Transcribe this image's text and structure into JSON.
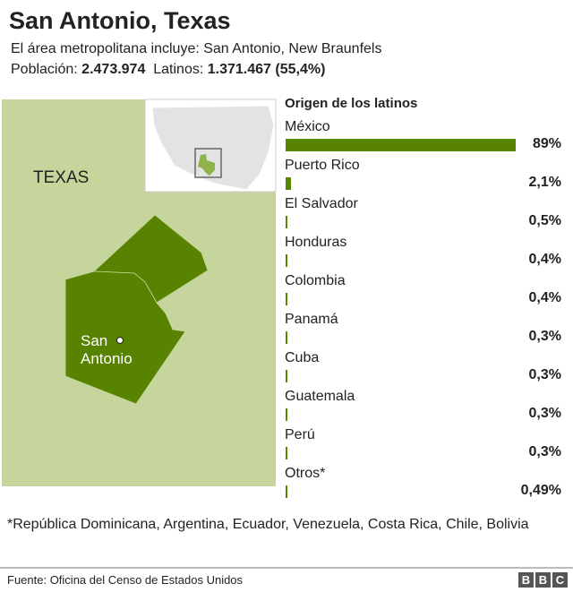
{
  "header": {
    "title": "San Antonio, Texas",
    "subtitle": "El área metropolitana incluye: San Antonio, New Braunfels",
    "pop_label": "Población:",
    "pop_value": "2.473.974",
    "lat_label": "Latinos:",
    "lat_value": "1.371.467 (55,4%)"
  },
  "map": {
    "state_label": "TEXAS",
    "city_label_1": "San",
    "city_label_2": "Antonio",
    "colors": {
      "land": "#c5d59b",
      "metro": "#588300"
    }
  },
  "chart_data": {
    "type": "bar",
    "title": "Origen de los latinos",
    "categories": [
      "México",
      "Puerto Rico",
      "El Salvador",
      "Honduras",
      "Colombia",
      "Panamá",
      "Cuba",
      "Guatemala",
      "Perú",
      "Otros*"
    ],
    "values": [
      89,
      2.1,
      0.5,
      0.4,
      0.4,
      0.3,
      0.3,
      0.3,
      0.3,
      0.49
    ],
    "value_labels": [
      "89%",
      "2,1%",
      "0,5%",
      "0,4%",
      "0,4%",
      "0,3%",
      "0,3%",
      "0,3%",
      "0,3%",
      "0,49%"
    ],
    "xlim": [
      0,
      89
    ],
    "color": "#588300"
  },
  "footnote": "*República Dominicana, Argentina, Ecuador, Venezuela, Costa Rica, Chile, Bolivia",
  "source": "Fuente: Oficina del Censo de Estados Unidos",
  "logo": [
    "B",
    "B",
    "C"
  ]
}
